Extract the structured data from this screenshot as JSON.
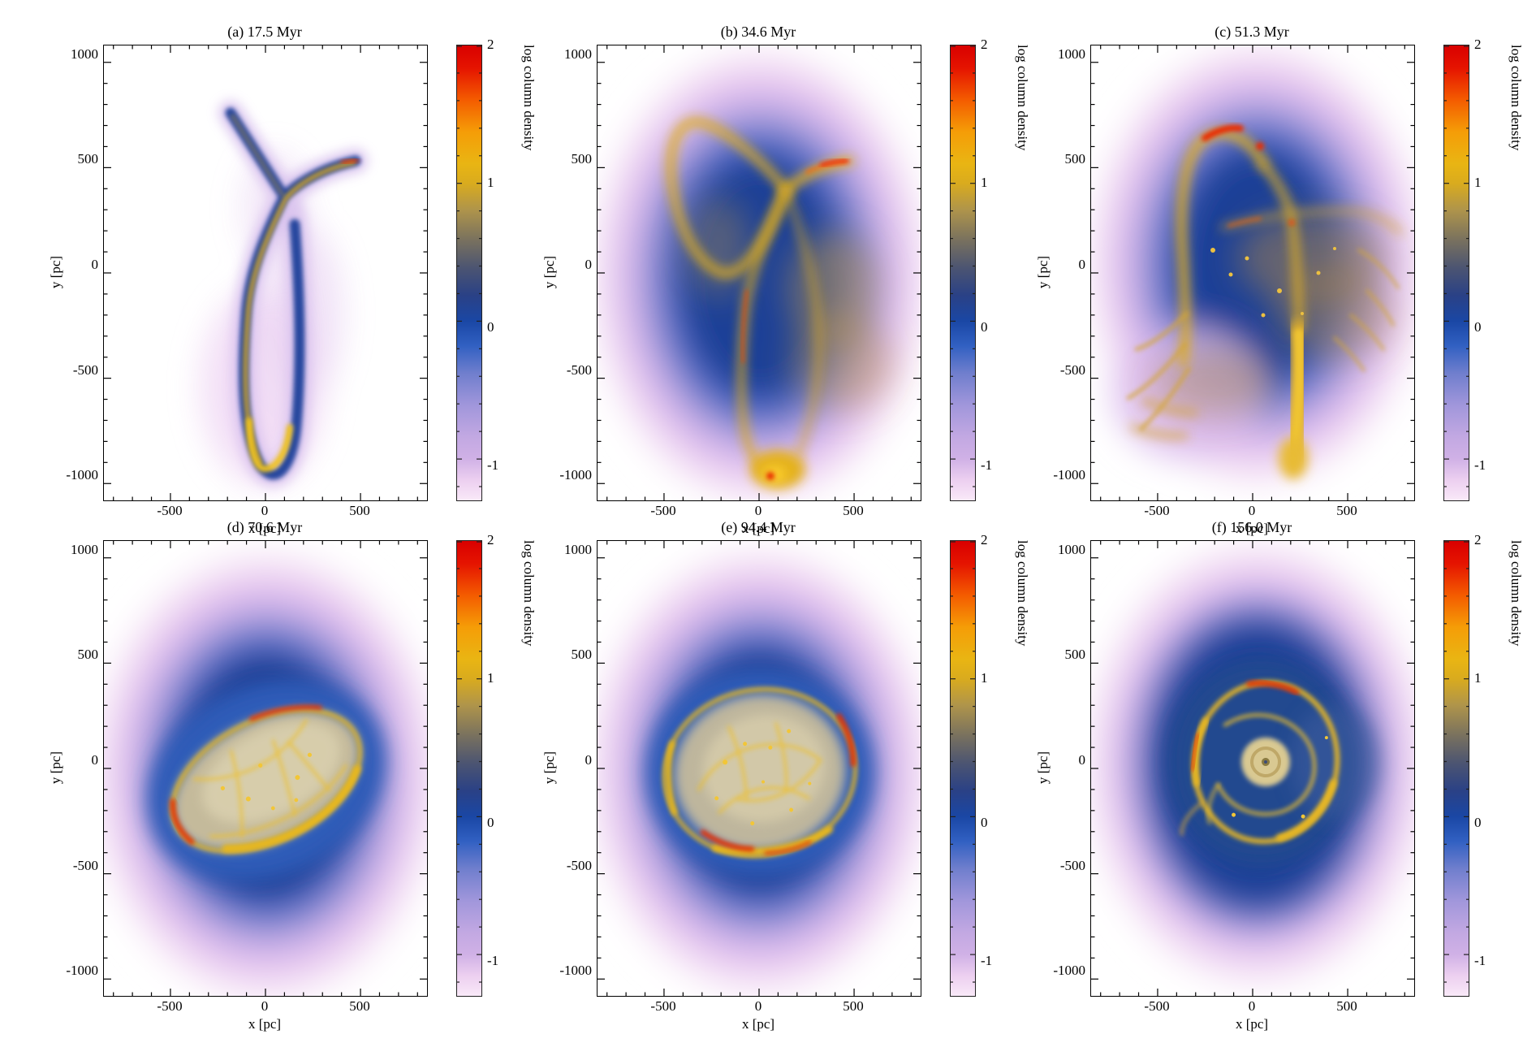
{
  "figure": {
    "description": "Six-panel time sequence of simulated gas log column density maps of a dwarf galaxy merger settling into a rotating disk",
    "panel_layout": "2 rows x 3 columns"
  },
  "axes": {
    "xlabel": "x [pc]",
    "ylabel": "y [pc]",
    "xticks": [
      "-500",
      "0",
      "500"
    ],
    "xtick_values": [
      -500,
      0,
      500
    ],
    "yticks": [
      "1000",
      "500",
      "0",
      "-500",
      "-1000"
    ],
    "ytick_values": [
      1000,
      500,
      0,
      -500,
      -1000
    ],
    "xlim": [
      -850,
      850
    ],
    "ylim": [
      -1080,
      1080
    ],
    "minor_tick_step": 100
  },
  "colorbar": {
    "label": "log column density",
    "ticks": [
      "2",
      "1",
      "0",
      "-1"
    ],
    "tick_values": [
      2,
      1,
      0,
      -1
    ],
    "range_top": 2,
    "range_bottom": -1.3,
    "gradient": [
      {
        "at": 0.0,
        "color": "#d90000"
      },
      {
        "at": 0.05,
        "color": "#e51400"
      },
      {
        "at": 0.12,
        "color": "#f45c00"
      },
      {
        "at": 0.19,
        "color": "#f59d07"
      },
      {
        "at": 0.26,
        "color": "#e9b513"
      },
      {
        "at": 0.303,
        "color": "#d9ab1e"
      },
      {
        "at": 0.36,
        "color": "#b0954a"
      },
      {
        "at": 0.43,
        "color": "#77705f"
      },
      {
        "at": 0.49,
        "color": "#4b5472"
      },
      {
        "at": 0.55,
        "color": "#2a4186"
      },
      {
        "at": 0.606,
        "color": "#1a47a5"
      },
      {
        "at": 0.66,
        "color": "#3160c2"
      },
      {
        "at": 0.72,
        "color": "#6f7ecd"
      },
      {
        "at": 0.79,
        "color": "#a096db"
      },
      {
        "at": 0.86,
        "color": "#c2a8e2"
      },
      {
        "at": 0.909,
        "color": "#d0b1e6"
      },
      {
        "at": 0.955,
        "color": "#eccff0"
      },
      {
        "at": 1.0,
        "color": "#f9e9f8"
      }
    ]
  },
  "panels": [
    {
      "id": "a",
      "title": "(a) 17.5 Myr",
      "time_myr": 17.5
    },
    {
      "id": "b",
      "title": "(b) 34.6 Myr",
      "time_myr": 34.6
    },
    {
      "id": "c",
      "title": "(c) 51.3 Myr",
      "time_myr": 51.3
    },
    {
      "id": "d",
      "title": "(d) 70.6 Myr",
      "time_myr": 70.6
    },
    {
      "id": "e",
      "title": "(e) 94.4 Myr",
      "time_myr": 94.4
    },
    {
      "id": "f",
      "title": "(f) 156.0 Myr",
      "time_myr": 156.0
    }
  ],
  "chart_data": [
    {
      "type": "heatmap",
      "title": "(a) 17.5 Myr",
      "time_myr": 17.5,
      "xlabel": "x [pc]",
      "ylabel": "y [pc]",
      "xlim": [
        -850,
        850
      ],
      "ylim": [
        -1080,
        1080
      ],
      "value_label": "log column density",
      "value_range": [
        -1.3,
        2
      ],
      "colormap": "pale pink - purple - blue - dark gray - gold - orange - red (low to high)",
      "morphology": "Narrow tidal gas ribbon on an empty white background: hairpin loop crossing near (-100, 400), extending down to y ~ -900 with bright gold bottom; small spur up to (-300, 750); red-tipped arm ending near (350, 530)."
    },
    {
      "type": "heatmap",
      "title": "(b) 34.6 Myr",
      "time_myr": 34.6,
      "xlabel": "x [pc]",
      "ylabel": "y [pc]",
      "xlim": [
        -850,
        850
      ],
      "ylim": [
        -1080,
        1080
      ],
      "value_label": "log column density",
      "value_range": [
        -1.3,
        2
      ],
      "colormap": "pale pink - purple - blue - dark gray - gold - orange - red (low to high)",
      "morphology": "Extended diffuse envelope (pink rim, blue body) filling the panel; gold loop in upper left; bright crescent arm with red tip near (350, 530); two gold streams descend to a bright knot with red core near (-60, -850); tan haze on right."
    },
    {
      "type": "heatmap",
      "title": "(c) 51.3 Myr",
      "time_myr": 51.3,
      "xlabel": "x [pc]",
      "ylabel": "y [pc]",
      "xlim": [
        -850,
        850
      ],
      "ylim": [
        -1080,
        1080
      ],
      "value_label": "log column density",
      "value_range": [
        -1.3,
        2
      ],
      "colormap": "pale pink - purple - blue - dark gray - gold - orange - red (low to high)",
      "morphology": "Diffuse envelope with tan mid-plane haze; tilted gold ring with red condensations near its top around (-250, 650); nearly straight filament running toward +x; thick gold tail descending to (150, -1000); scattered clumps and wisps on the right."
    },
    {
      "type": "heatmap",
      "title": "(d) 70.6 Myr",
      "time_myr": 70.6,
      "xlabel": "x [pc]",
      "ylabel": "y [pc]",
      "xlim": [
        -850,
        850
      ],
      "ylim": [
        -1080,
        1080
      ],
      "value_label": "log column density",
      "value_range": [
        -1.3,
        2
      ],
      "colormap": "pale pink - purple - blue - dark gray - gold - orange - red (low to high)",
      "morphology": "Large round envelope; tilted (~-27 deg) filamentary gold disk of radius ~500 pc centered near the origin; red shocked segments on upper-left and top edges; khaki interior laced with gold filaments and small clumps."
    },
    {
      "type": "heatmap",
      "title": "(e) 94.4 Myr",
      "time_myr": 94.4,
      "xlabel": "x [pc]",
      "ylabel": "y [pc]",
      "xlim": [
        -850,
        850
      ],
      "ylim": [
        -1080,
        1080
      ],
      "value_label": "log column density",
      "value_range": [
        -1.3,
        2
      ],
      "colormap": "pale pink - purple - blue - dark gray - gold - orange - red (low to high)",
      "morphology": "Round envelope; gold filamentary ring of radius ~450 pc with red segments on the right and lower-left edges; interior spiral filaments and many small clumps."
    },
    {
      "type": "heatmap",
      "title": "(f) 156.0 Myr",
      "time_myr": 156.0,
      "xlabel": "x [pc]",
      "ylabel": "y [pc]",
      "xlim": [
        -850,
        850
      ],
      "ylim": [
        -1080,
        1080
      ],
      "value_label": "log column density",
      "value_range": [
        -1.3,
        2
      ],
      "colormap": "pale pink - purple - blue - dark gray - gold - orange - red (low to high)",
      "morphology": "Round envelope; compact gold ring of radius ~350 pc with inner spiral arm and a bright central spiral core knot at the origin; red segment at the top of the ring."
    }
  ]
}
